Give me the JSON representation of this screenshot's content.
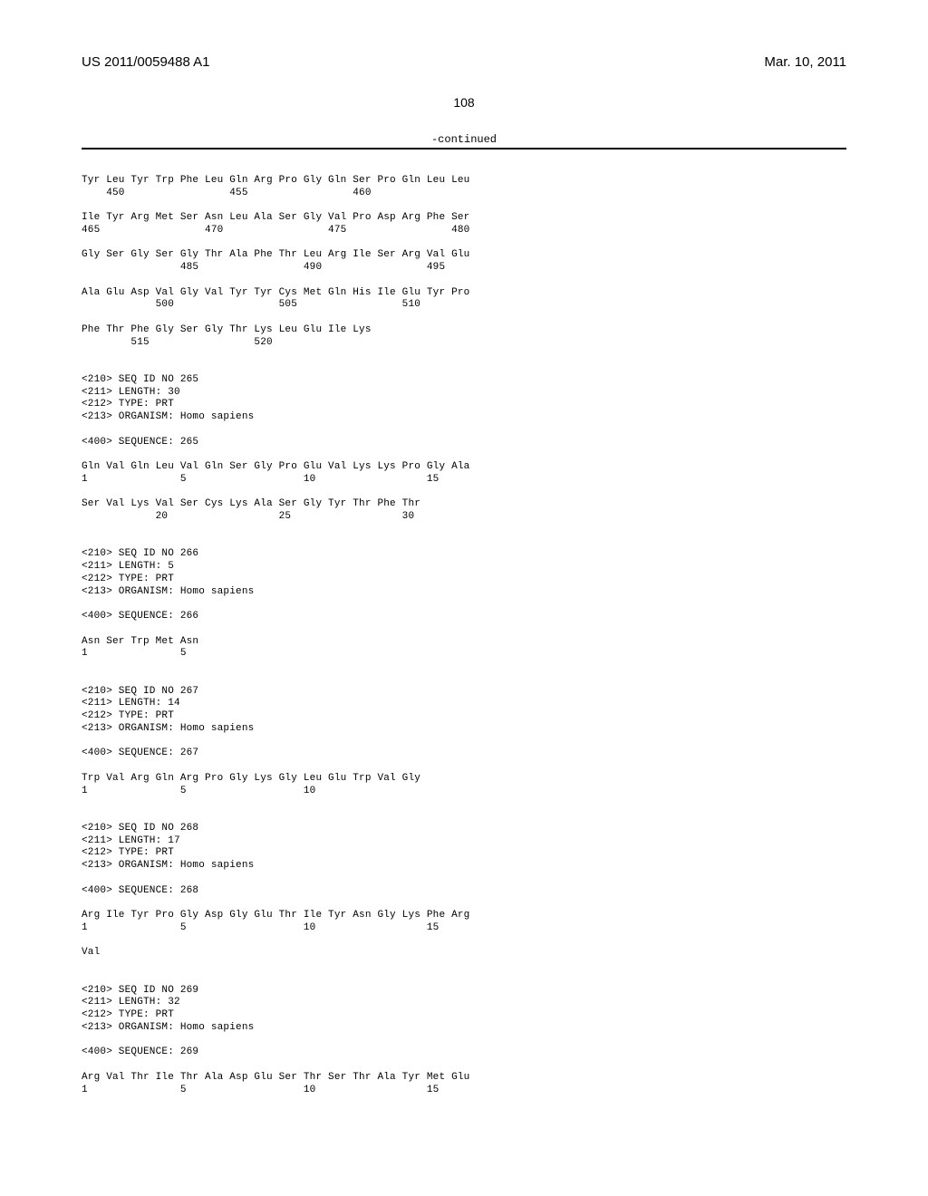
{
  "header": {
    "left": "US 2011/0059488 A1",
    "right": "Mar. 10, 2011"
  },
  "page_number": "108",
  "continued_label": "-continued",
  "sequences": {
    "pre": [
      "Tyr Leu Tyr Trp Phe Leu Gln Arg Pro Gly Gln Ser Pro Gln Leu Leu",
      "    450                 455                 460",
      "",
      "Ile Tyr Arg Met Ser Asn Leu Ala Ser Gly Val Pro Asp Arg Phe Ser",
      "465                 470                 475                 480",
      "",
      "Gly Ser Gly Ser Gly Thr Ala Phe Thr Leu Arg Ile Ser Arg Val Glu",
      "                485                 490                 495",
      "",
      "Ala Glu Asp Val Gly Val Tyr Tyr Cys Met Gln His Ile Glu Tyr Pro",
      "            500                 505                 510",
      "",
      "Phe Thr Phe Gly Ser Gly Thr Lys Leu Glu Ile Lys",
      "        515                 520"
    ],
    "s265": {
      "meta": [
        "<210> SEQ ID NO 265",
        "<211> LENGTH: 30",
        "<212> TYPE: PRT",
        "<213> ORGANISM: Homo sapiens"
      ],
      "seq_label": "<400> SEQUENCE: 265",
      "lines": [
        "Gln Val Gln Leu Val Gln Ser Gly Pro Glu Val Lys Lys Pro Gly Ala",
        "1               5                   10                  15",
        "",
        "Ser Val Lys Val Ser Cys Lys Ala Ser Gly Tyr Thr Phe Thr",
        "            20                  25                  30"
      ]
    },
    "s266": {
      "meta": [
        "<210> SEQ ID NO 266",
        "<211> LENGTH: 5",
        "<212> TYPE: PRT",
        "<213> ORGANISM: Homo sapiens"
      ],
      "seq_label": "<400> SEQUENCE: 266",
      "lines": [
        "Asn Ser Trp Met Asn",
        "1               5"
      ]
    },
    "s267": {
      "meta": [
        "<210> SEQ ID NO 267",
        "<211> LENGTH: 14",
        "<212> TYPE: PRT",
        "<213> ORGANISM: Homo sapiens"
      ],
      "seq_label": "<400> SEQUENCE: 267",
      "lines": [
        "Trp Val Arg Gln Arg Pro Gly Lys Gly Leu Glu Trp Val Gly",
        "1               5                   10"
      ]
    },
    "s268": {
      "meta": [
        "<210> SEQ ID NO 268",
        "<211> LENGTH: 17",
        "<212> TYPE: PRT",
        "<213> ORGANISM: Homo sapiens"
      ],
      "seq_label": "<400> SEQUENCE: 268",
      "lines": [
        "Arg Ile Tyr Pro Gly Asp Gly Glu Thr Ile Tyr Asn Gly Lys Phe Arg",
        "1               5                   10                  15",
        "",
        "Val"
      ]
    },
    "s269": {
      "meta": [
        "<210> SEQ ID NO 269",
        "<211> LENGTH: 32",
        "<212> TYPE: PRT",
        "<213> ORGANISM: Homo sapiens"
      ],
      "seq_label": "<400> SEQUENCE: 269",
      "lines": [
        "Arg Val Thr Ile Thr Ala Asp Glu Ser Thr Ser Thr Ala Tyr Met Glu",
        "1               5                   10                  15"
      ]
    }
  }
}
